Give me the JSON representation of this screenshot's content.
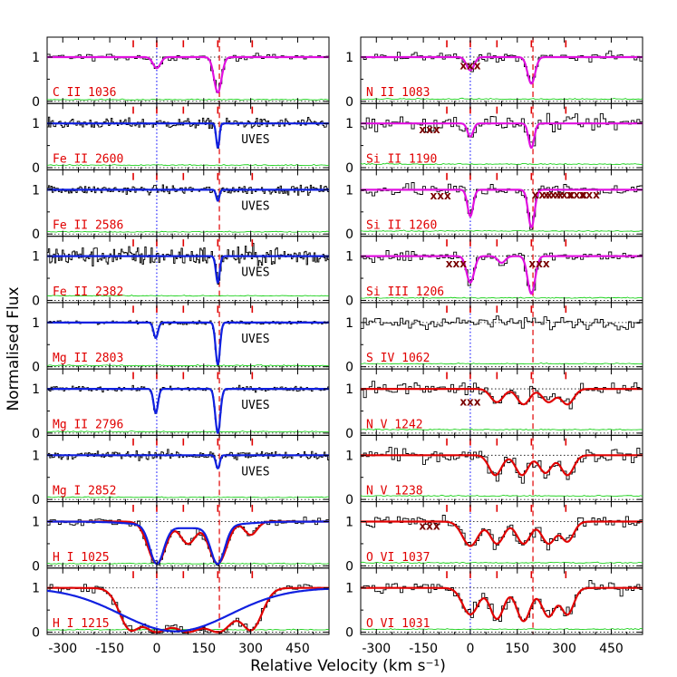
{
  "chart_data": {
    "type": "line",
    "xlabel": "Relative Velocity (km s⁻¹)",
    "ylabel": "Normalised Flux",
    "xlim": [
      -350,
      550
    ],
    "ylim": [
      -0.05,
      1.45
    ],
    "xticks": [
      -300,
      -150,
      0,
      150,
      300,
      450
    ],
    "yticks": [
      0,
      1
    ],
    "component_marks_left": [
      -75,
      0,
      85,
      195,
      305
    ],
    "component_marks_right": [
      -75,
      0,
      85,
      195,
      305
    ],
    "reference_velocities": [
      0,
      200
    ],
    "colors": {
      "data": "#000000",
      "error": "#00cc00",
      "model_blue": "#1020e0",
      "model_magenta": "#e010e0",
      "model_red": "#e00000",
      "marks": "#e00000",
      "ion_labels": "#e00000",
      "contamination": "#7a0000",
      "refline": "#2222ff"
    },
    "left_panels": [
      {
        "label": "C II 1036",
        "source": "",
        "model": "magenta",
        "lines": [
          [
            0,
            0.25,
            12
          ],
          [
            195,
            0.8,
            12
          ]
        ],
        "noise": 0.05,
        "xxx": []
      },
      {
        "label": "Fe II 2600",
        "source": "UVES",
        "model": "blue",
        "lines": [
          [
            195,
            0.55,
            5
          ]
        ],
        "noise": 0.08,
        "xxx": []
      },
      {
        "label": "Fe II 2586",
        "source": "UVES",
        "model": "blue",
        "lines": [
          [
            195,
            0.25,
            5
          ]
        ],
        "noise": 0.07,
        "xxx": []
      },
      {
        "label": "Fe II 2382",
        "source": "UVES",
        "model": "blue",
        "lines": [
          [
            195,
            0.6,
            6
          ]
        ],
        "noise": 0.16,
        "xxx": []
      },
      {
        "label": "Mg II 2803",
        "source": "UVES",
        "model": "blue",
        "lines": [
          [
            -3,
            0.35,
            7
          ],
          [
            195,
            0.95,
            7
          ]
        ],
        "noise": 0.03,
        "xxx": []
      },
      {
        "label": "Mg II 2796",
        "source": "UVES",
        "model": "blue",
        "lines": [
          [
            -3,
            0.55,
            7
          ],
          [
            195,
            1.0,
            8
          ]
        ],
        "noise": 0.04,
        "xxx": []
      },
      {
        "label": "Mg I 2852",
        "source": "UVES",
        "model": "blue",
        "lines": [
          [
            195,
            0.3,
            6
          ]
        ],
        "noise": 0.07,
        "xxx": []
      },
      {
        "label": "H I 1025",
        "source": "",
        "model": "red",
        "lines": [
          [
            0,
            0.95,
            28
          ],
          [
            100,
            0.5,
            25
          ],
          [
            195,
            0.95,
            28
          ],
          [
            300,
            0.3,
            20
          ]
        ],
        "noise": 0.07,
        "xxx": []
      },
      {
        "label": "H I 1215",
        "source": "",
        "model": "red",
        "lines": [
          [
            -80,
            0.95,
            35
          ],
          [
            0,
            1.0,
            55
          ],
          [
            100,
            1.0,
            60
          ],
          [
            195,
            1.0,
            55
          ],
          [
            300,
            0.95,
            35
          ]
        ],
        "noise": 0.08,
        "xxx": []
      }
    ],
    "right_panels": [
      {
        "label": "N II 1083",
        "source": "",
        "model": "magenta",
        "lines": [
          [
            0,
            0.3,
            12
          ],
          [
            195,
            0.6,
            12
          ]
        ],
        "noise": 0.07,
        "xxx": [
          [
            0,
            0.72
          ]
        ]
      },
      {
        "label": "Si II 1190",
        "source": "",
        "model": "magenta",
        "lines": [
          [
            0,
            0.3,
            9
          ],
          [
            195,
            0.55,
            9
          ]
        ],
        "noise": 0.12,
        "xxx": [
          [
            -130,
            0.78
          ]
        ]
      },
      {
        "label": "Si II 1260",
        "source": "",
        "model": "magenta",
        "lines": [
          [
            0,
            0.6,
            9
          ],
          [
            195,
            0.85,
            10
          ]
        ],
        "noise": 0.1,
        "xxx": [
          [
            -95,
            0.78
          ],
          [
            230,
            0.8
          ],
          [
            265,
            0.8
          ],
          [
            300,
            0.8
          ],
          [
            340,
            0.8
          ],
          [
            380,
            0.8
          ]
        ]
      },
      {
        "label": "Si III 1206",
        "source": "",
        "model": "magenta",
        "lines": [
          [
            0,
            0.6,
            12
          ],
          [
            100,
            0.15,
            12
          ],
          [
            195,
            0.85,
            12
          ]
        ],
        "noise": 0.08,
        "xxx": [
          [
            -45,
            0.75
          ],
          [
            220,
            0.75
          ]
        ]
      },
      {
        "label": "S IV 1062",
        "source": "",
        "model": "",
        "lines": [],
        "noise": 0.1,
        "xxx": []
      },
      {
        "label": "N V 1242",
        "source": "",
        "model": "red",
        "lines": [
          [
            85,
            0.3,
            20
          ],
          [
            170,
            0.35,
            20
          ],
          [
            250,
            0.3,
            20
          ],
          [
            310,
            0.35,
            20
          ]
        ],
        "noise": 0.12,
        "xxx": [
          [
            0,
            0.62
          ]
        ]
      },
      {
        "label": "N V 1238",
        "source": "",
        "model": "red",
        "lines": [
          [
            80,
            0.45,
            20
          ],
          [
            165,
            0.45,
            20
          ],
          [
            240,
            0.4,
            20
          ],
          [
            310,
            0.45,
            20
          ]
        ],
        "noise": 0.12,
        "xxx": []
      },
      {
        "label": "O VI 1037",
        "source": "",
        "model": "red",
        "lines": [
          [
            0,
            0.55,
            25
          ],
          [
            85,
            0.5,
            22
          ],
          [
            170,
            0.5,
            22
          ],
          [
            250,
            0.5,
            22
          ],
          [
            310,
            0.45,
            20
          ]
        ],
        "noise": 0.1,
        "xxx": [
          [
            -130,
            0.82
          ]
        ]
      },
      {
        "label": "O VI 1031",
        "source": "",
        "model": "red",
        "lines": [
          [
            0,
            0.6,
            25
          ],
          [
            85,
            0.7,
            22
          ],
          [
            170,
            0.75,
            22
          ],
          [
            250,
            0.65,
            22
          ],
          [
            310,
            0.6,
            20
          ]
        ],
        "noise": 0.1,
        "xxx": []
      }
    ]
  },
  "labels": {
    "xlabel": "Relative Velocity (km s⁻¹)",
    "ylabel": "Normalised Flux"
  }
}
